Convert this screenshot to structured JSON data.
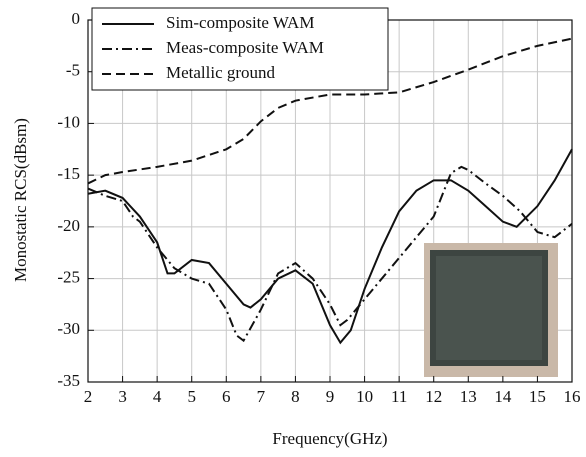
{
  "chart_data": {
    "type": "line",
    "xlabel": "Frequency(GHz)",
    "ylabel": "Monostatic RCS(dBsm)",
    "xlim": [
      2,
      16
    ],
    "ylim": [
      -35,
      0
    ],
    "xticks": [
      2,
      3,
      4,
      5,
      6,
      7,
      8,
      9,
      10,
      11,
      12,
      13,
      14,
      15,
      16
    ],
    "yticks": [
      -35,
      -30,
      -25,
      -20,
      -15,
      -10,
      -5,
      0
    ],
    "grid": true,
    "legend": "upper left",
    "series": [
      {
        "name": "Sim-composite WAM",
        "color": "#111111",
        "dash": "solid",
        "x": [
          2,
          2.5,
          3,
          3.5,
          4,
          4.3,
          4.5,
          5,
          5.5,
          6,
          6.5,
          6.7,
          7,
          7.5,
          8,
          8.5,
          9,
          9.3,
          9.6,
          10,
          10.5,
          11,
          11.5,
          12,
          12.5,
          13,
          13.5,
          14,
          14.4,
          15,
          15.5,
          16
        ],
        "values": [
          -16.8,
          -16.5,
          -17.2,
          -19,
          -21.5,
          -24.5,
          -24.5,
          -23.2,
          -23.5,
          -25.5,
          -27.5,
          -27.8,
          -27,
          -25,
          -24.2,
          -25.5,
          -29.5,
          -31.2,
          -30,
          -26,
          -22,
          -18.5,
          -16.5,
          -15.5,
          -15.5,
          -16.5,
          -18,
          -19.5,
          -20,
          -18,
          -15.5,
          -12.5
        ]
      },
      {
        "name": "Meas-composite WAM",
        "color": "#111111",
        "dash": "dashdot",
        "x": [
          2,
          2.5,
          3,
          3.3,
          3.5,
          4,
          4.5,
          5,
          5.5,
          6,
          6.3,
          6.5,
          7,
          7.5,
          8,
          8.5,
          9,
          9.3,
          9.5,
          10,
          10.5,
          11,
          11.5,
          12,
          12.5,
          12.8,
          13,
          13.5,
          14,
          14.5,
          15,
          15.5,
          16
        ],
        "values": [
          -16.3,
          -17,
          -17.5,
          -19,
          -19.5,
          -22,
          -24,
          -25,
          -25.5,
          -28,
          -30.5,
          -31,
          -28,
          -24.5,
          -23.5,
          -25,
          -27.5,
          -29.5,
          -29,
          -27,
          -25,
          -23,
          -21,
          -19,
          -14.8,
          -14.2,
          -14.5,
          -15.8,
          -17,
          -18.5,
          -20.5,
          -21,
          -19.7
        ]
      },
      {
        "name": "Metallic ground",
        "color": "#111111",
        "dash": "dash",
        "x": [
          2,
          2.5,
          3,
          4,
          5,
          6,
          6.5,
          7,
          7.5,
          8,
          9,
          10,
          11,
          12,
          13,
          14,
          15,
          16
        ],
        "values": [
          -15.8,
          -15,
          -14.7,
          -14.2,
          -13.6,
          -12.5,
          -11.5,
          -9.8,
          -8.5,
          -7.8,
          -7.2,
          -7.2,
          -7,
          -6,
          -4.8,
          -3.5,
          -2.5,
          -1.8
        ]
      }
    ]
  }
}
